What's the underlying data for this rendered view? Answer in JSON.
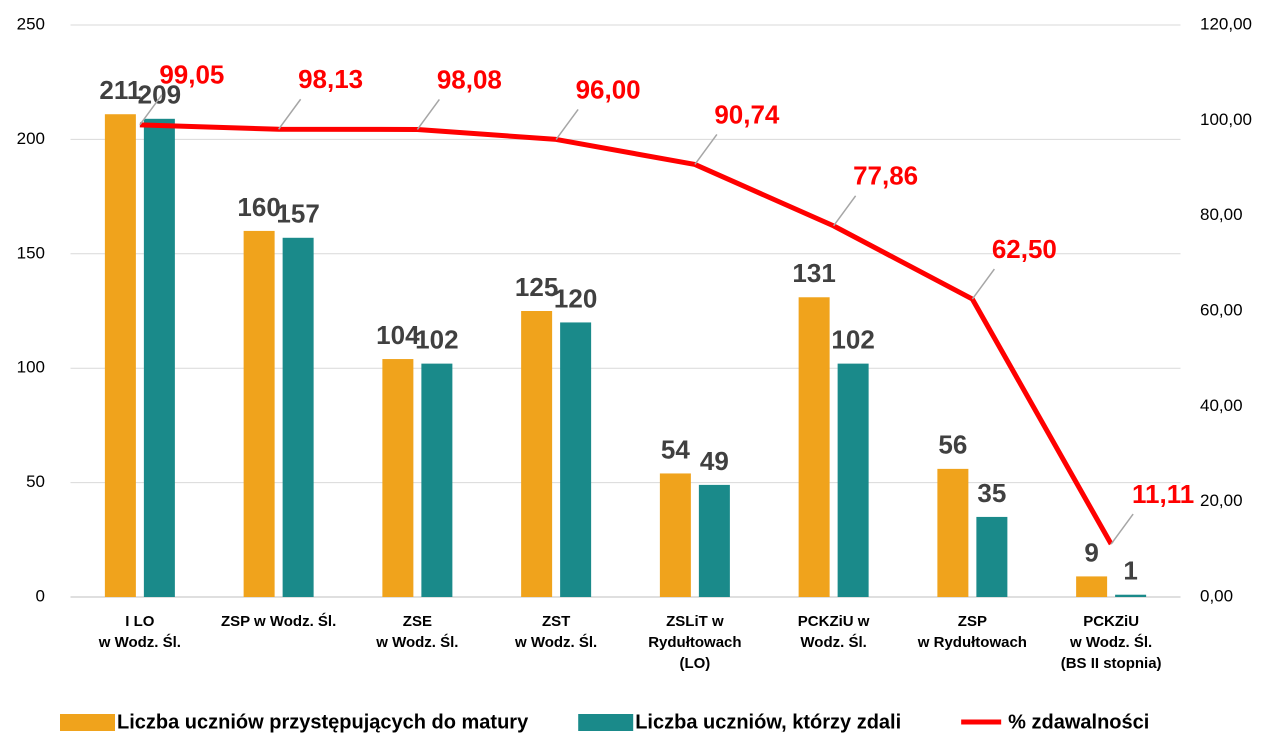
{
  "chart_data": {
    "type": "bar_line",
    "categories": [
      "I LO\nw Wodz. Śl.",
      "ZSP w Wodz. Śl.",
      "ZSE\nw Wodz. Śl.",
      "ZST\nw Wodz. Śl.",
      "ZSLiT w\nRydułtowach\n(LO)",
      "PCKZiU w\nWodz. Śl.",
      "ZSP\nw Rydułtowach",
      "PCKZiU\nw Wodz. Śl.\n(BS II stopnia)"
    ],
    "series": [
      {
        "name": "Liczba uczniów przystępujących do matury",
        "color": "#f0a31c",
        "type": "bar",
        "values": [
          211,
          160,
          104,
          125,
          54,
          131,
          56,
          9
        ]
      },
      {
        "name": "Liczba uczniów, którzy zdali",
        "color": "#1a8a8a",
        "type": "bar",
        "values": [
          209,
          157,
          102,
          120,
          49,
          102,
          35,
          1
        ]
      },
      {
        "name": "% zdawalności",
        "color": "#ff0000",
        "type": "line",
        "axis": "y2",
        "values": [
          99.05,
          98.13,
          98.08,
          96.0,
          90.74,
          77.86,
          62.5,
          11.11
        ],
        "value_labels": [
          "99,05",
          "98,13",
          "98,08",
          "96,00",
          "90,74",
          "77,86",
          "62,50",
          "11,11"
        ]
      }
    ],
    "ylim": [
      0,
      250
    ],
    "yticks": [
      0,
      50,
      100,
      150,
      200,
      250
    ],
    "y2lim": [
      0,
      120
    ],
    "y2ticks": [
      {
        "value": 0,
        "label": "0,00"
      },
      {
        "value": 20,
        "label": "20,00"
      },
      {
        "value": 40,
        "label": "40,00"
      },
      {
        "value": 60,
        "label": "60,00"
      },
      {
        "value": 80,
        "label": "80,00"
      },
      {
        "value": 100,
        "label": "100,00"
      },
      {
        "value": 120,
        "label": "120,00"
      }
    ],
    "grid": true,
    "legend": "bottom"
  }
}
